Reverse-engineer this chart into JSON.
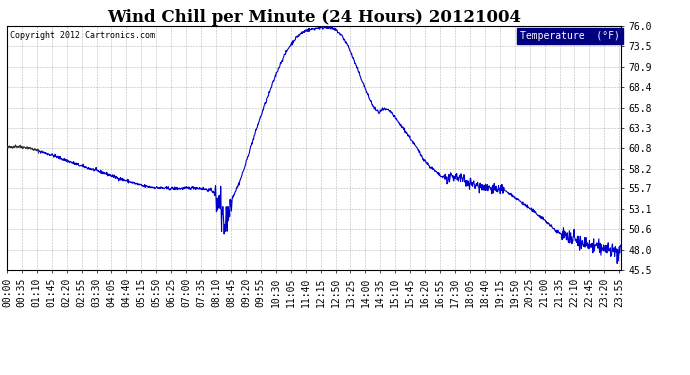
{
  "title": "Wind Chill per Minute (24 Hours) 20121004",
  "copyright_text": "Copyright 2012 Cartronics.com",
  "legend_label": "Temperature  (°F)",
  "ylabel_ticks": [
    45.5,
    48.0,
    50.6,
    53.1,
    55.7,
    58.2,
    60.8,
    63.3,
    65.8,
    68.4,
    70.9,
    73.5,
    76.0
  ],
  "ylim": [
    45.5,
    76.0
  ],
  "line_color": "#0000cc",
  "dark_line_color": "#333333",
  "background_color": "#ffffff",
  "grid_color": "#999999",
  "title_fontsize": 12,
  "tick_label_fontsize": 7,
  "num_minutes": 1440
}
